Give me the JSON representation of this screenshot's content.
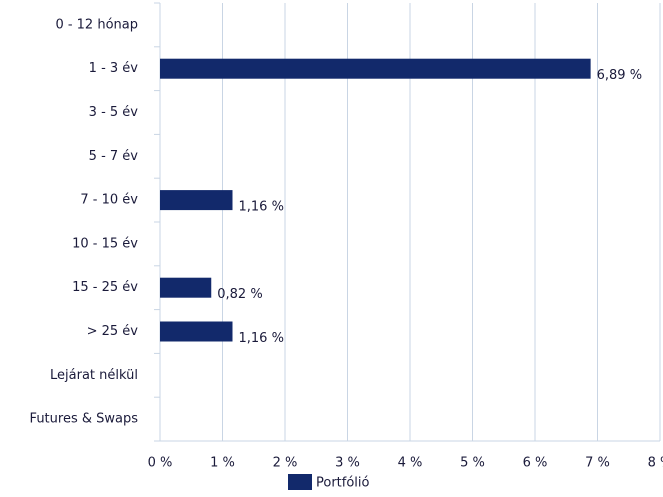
{
  "chart_data": {
    "type": "barh",
    "categories": [
      "0 - 12 hónap",
      "1 - 3 év",
      "3 - 5 év",
      "5 - 7 év",
      "7 - 10 év",
      "10 - 15 év",
      "15 - 25 év",
      "> 25 év",
      "Lejárat nélkül",
      "Futures & Swaps"
    ],
    "series": [
      {
        "name": "Portfólió",
        "color": "#12296b",
        "values": [
          null,
          6.89,
          null,
          null,
          1.16,
          null,
          0.82,
          1.16,
          null,
          null
        ],
        "value_labels": [
          null,
          "6,89 %",
          null,
          null,
          "1,16 %",
          null,
          "0,82 %",
          "1,16 %",
          null,
          null
        ]
      }
    ],
    "xlim": [
      0,
      8
    ],
    "xticks": [
      {
        "value": 0,
        "label": "0 %"
      },
      {
        "value": 1,
        "label": "1 %"
      },
      {
        "value": 2,
        "label": "2 %"
      },
      {
        "value": 3,
        "label": "3 %"
      },
      {
        "value": 4,
        "label": "4 %"
      },
      {
        "value": 5,
        "label": "5 %"
      },
      {
        "value": 6,
        "label": "6 %"
      },
      {
        "value": 7,
        "label": "7 %"
      },
      {
        "value": 8,
        "label": "8 %"
      }
    ],
    "grid": true,
    "legend": "bottom"
  }
}
